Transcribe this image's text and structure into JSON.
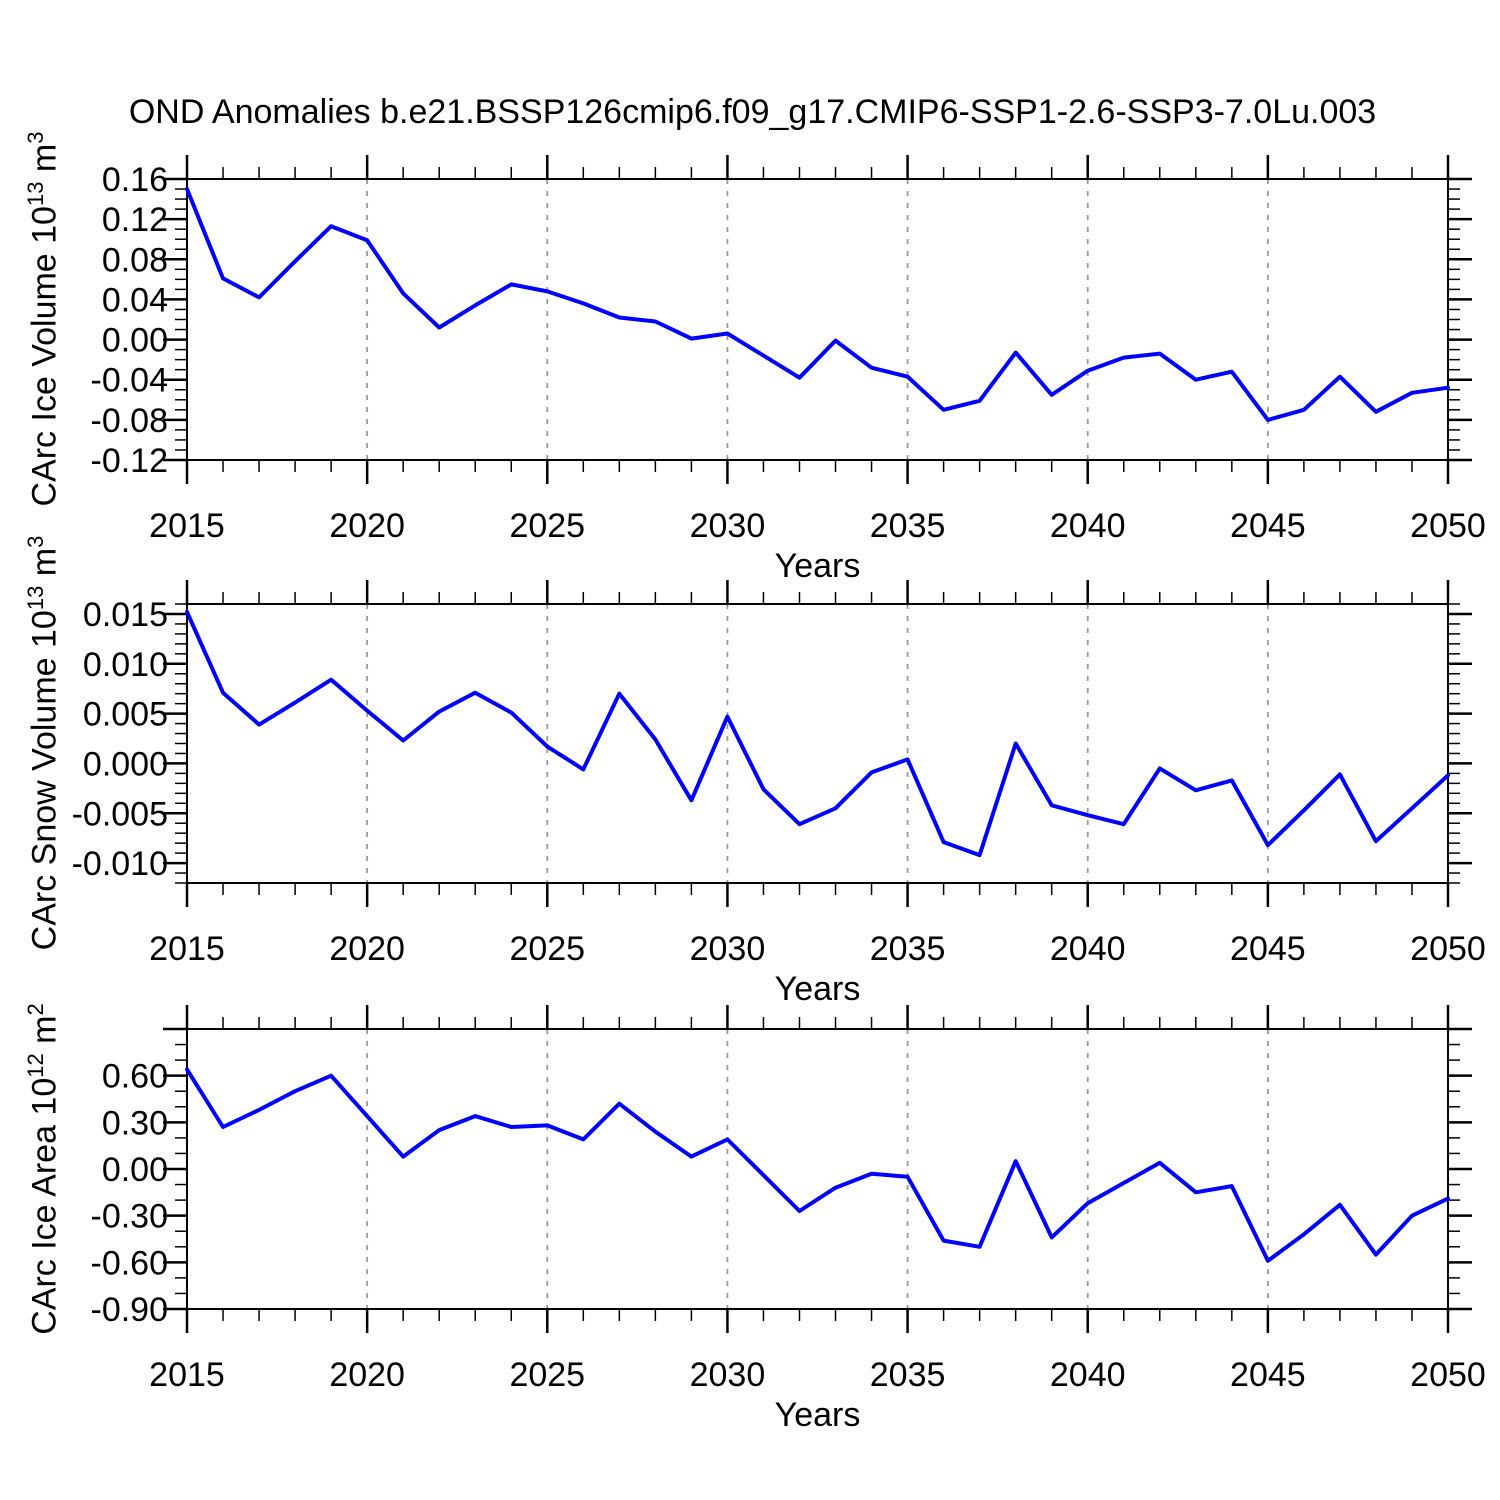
{
  "title": "OND Anomalies b.e21.BSSP126cmip6.f09_g17.CMIP6-SSP1-2.6-SSP3-7.0Lu.003",
  "colors": {
    "line": "#0000ff",
    "grid": "#9a9a9a",
    "frame": "#000000",
    "text": "#000000",
    "background": "#ffffff"
  },
  "xaxis": {
    "label": "Years",
    "start": 2015,
    "end": 2050,
    "major_step": 5,
    "minor_step": 1,
    "tick_labels": [
      "2015",
      "2020",
      "2025",
      "2030",
      "2035",
      "2040",
      "2045",
      "2050"
    ],
    "gridline_years": [
      2020,
      2025,
      2030,
      2035,
      2040,
      2045
    ],
    "years": [
      2015,
      2016,
      2017,
      2018,
      2019,
      2020,
      2021,
      2022,
      2023,
      2024,
      2025,
      2026,
      2027,
      2028,
      2029,
      2030,
      2031,
      2032,
      2033,
      2034,
      2035,
      2036,
      2037,
      2038,
      2039,
      2040,
      2041,
      2042,
      2043,
      2044,
      2045,
      2046,
      2047,
      2048,
      2049,
      2050
    ]
  },
  "chart_data": [
    {
      "type": "line",
      "name": "ice-volume",
      "ylabel_parts": [
        "CArc Ice Volume 10",
        "13",
        " m",
        "3"
      ],
      "ylim": [
        -0.12,
        0.16
      ],
      "ymajor": 0.04,
      "yminor": 0.01,
      "grid": "vertical-dashed",
      "legend": "none",
      "yticks": [
        {
          "v": 0.16,
          "label": "0.16"
        },
        {
          "v": 0.12,
          "label": "0.12"
        },
        {
          "v": 0.08,
          "label": "0.08"
        },
        {
          "v": 0.04,
          "label": "0.04"
        },
        {
          "v": 0.0,
          "label": "0.00"
        },
        {
          "v": -0.04,
          "label": "-0.04"
        },
        {
          "v": -0.08,
          "label": "-0.08"
        },
        {
          "v": -0.12,
          "label": "-0.12"
        }
      ],
      "values": [
        0.15,
        0.061,
        0.042,
        0.078,
        0.113,
        0.099,
        0.046,
        0.012,
        0.034,
        0.055,
        0.048,
        0.036,
        0.022,
        0.018,
        0.001,
        0.006,
        -0.016,
        -0.038,
        -0.001,
        -0.028,
        -0.037,
        -0.07,
        -0.061,
        -0.013,
        -0.055,
        -0.031,
        -0.018,
        -0.014,
        -0.04,
        -0.032,
        -0.08,
        -0.07,
        -0.037,
        -0.072,
        -0.053,
        -0.048
      ]
    },
    {
      "type": "line",
      "name": "snow-volume",
      "ylabel_parts": [
        "CArc Snow Volume 10",
        "13",
        " m",
        "3"
      ],
      "ylim": [
        -0.012,
        0.016
      ],
      "ymajor": 0.005,
      "yminor": 0.001,
      "grid": "vertical-dashed",
      "legend": "none",
      "yticks": [
        {
          "v": 0.015,
          "label": "0.015"
        },
        {
          "v": 0.01,
          "label": "0.010"
        },
        {
          "v": 0.005,
          "label": "0.005"
        },
        {
          "v": 0.0,
          "label": "0.000"
        },
        {
          "v": -0.005,
          "label": "-0.005"
        },
        {
          "v": -0.01,
          "label": "-0.010"
        }
      ],
      "values": [
        0.0152,
        0.0071,
        0.0039,
        0.0061,
        0.0084,
        0.0053,
        0.0023,
        0.0052,
        0.0071,
        0.0051,
        0.0017,
        -0.0006,
        0.007,
        0.0024,
        -0.0037,
        0.0047,
        -0.0026,
        -0.0061,
        -0.0045,
        -0.0009,
        0.0004,
        -0.0079,
        -0.0092,
        0.002,
        -0.0042,
        -0.0052,
        -0.0061,
        -0.0005,
        -0.0027,
        -0.0017,
        -0.0082,
        -0.0047,
        -0.0011,
        -0.0078,
        -0.0045,
        -0.0012
      ]
    },
    {
      "type": "line",
      "name": "ice-area",
      "ylabel_parts": [
        "CArc Ice Area 10",
        "12",
        " m",
        "2"
      ],
      "ylim": [
        -0.9,
        0.9
      ],
      "ymajor": 0.3,
      "yminor": 0.1,
      "grid": "vertical-dashed",
      "legend": "none",
      "yticks": [
        {
          "v": 0.6,
          "label": "0.60"
        },
        {
          "v": 0.3,
          "label": "0.30"
        },
        {
          "v": 0.0,
          "label": "0.00"
        },
        {
          "v": -0.3,
          "label": "-0.30"
        },
        {
          "v": -0.6,
          "label": "-0.60"
        },
        {
          "v": -0.9,
          "label": "-0.90"
        }
      ],
      "values": [
        0.64,
        0.27,
        0.38,
        0.5,
        0.6,
        0.34,
        0.08,
        0.25,
        0.34,
        0.27,
        0.28,
        0.19,
        0.42,
        0.24,
        0.08,
        0.19,
        -0.04,
        -0.27,
        -0.12,
        -0.03,
        -0.05,
        -0.46,
        -0.5,
        0.05,
        -0.44,
        -0.22,
        -0.09,
        0.04,
        -0.15,
        -0.11,
        -0.59,
        -0.42,
        -0.23,
        -0.55,
        -0.3,
        -0.19
      ]
    }
  ]
}
